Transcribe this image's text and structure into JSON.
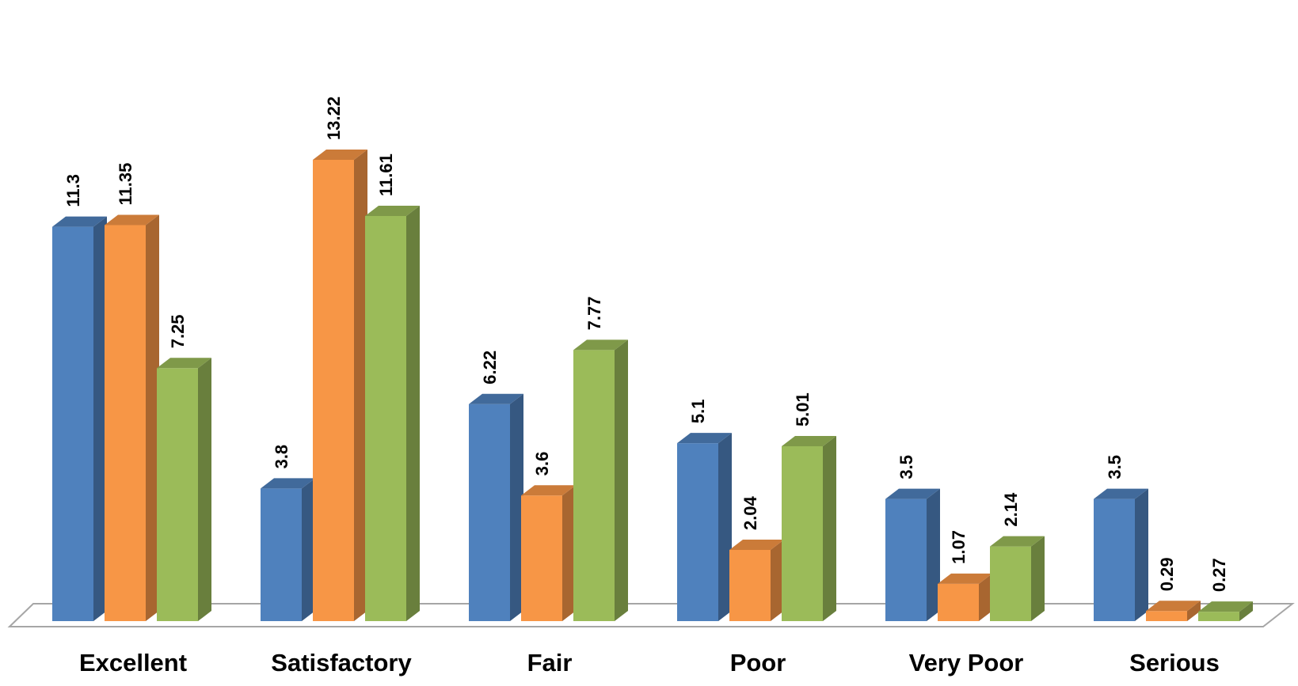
{
  "chart_data": {
    "type": "bar",
    "style": "3d-clustered-column",
    "title": "",
    "xlabel": "",
    "ylabel": "",
    "ylim": [
      0,
      14
    ],
    "grid": false,
    "legend": "none",
    "categories": [
      "Excellent",
      "Satisfactory",
      "Fair",
      "Poor",
      "Very Poor",
      "Serious"
    ],
    "series": [
      {
        "color": "#4f81bd",
        "values": [
          11.3,
          3.8,
          6.22,
          5.1,
          3.5,
          3.5
        ]
      },
      {
        "color": "#f79646",
        "values": [
          11.35,
          13.22,
          3.6,
          2.04,
          1.07,
          0.29
        ]
      },
      {
        "color": "#9bbb59",
        "values": [
          7.25,
          11.61,
          7.77,
          5.01,
          2.14,
          0.27
        ]
      }
    ],
    "value_labels": [
      [
        "11.3",
        "3.8",
        "6.22",
        "5.1",
        "3.5",
        "3.5"
      ],
      [
        "11.35",
        "13.22",
        "3.6",
        "2.04",
        "1.07",
        "0.29"
      ],
      [
        "7.25",
        "11.61",
        "7.77",
        "5.01",
        "2.14",
        "0.27"
      ]
    ]
  }
}
